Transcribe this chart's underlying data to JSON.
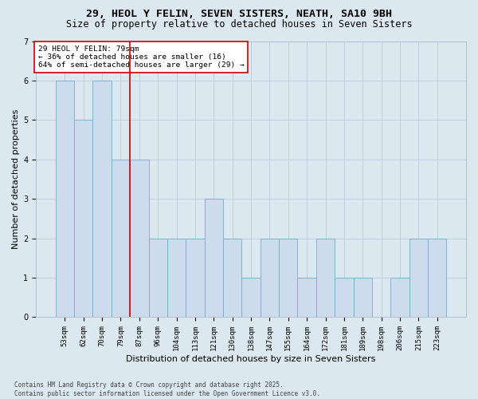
{
  "title1": "29, HEOL Y FELIN, SEVEN SISTERS, NEATH, SA10 9BH",
  "title2": "Size of property relative to detached houses in Seven Sisters",
  "xlabel": "Distribution of detached houses by size in Seven Sisters",
  "ylabel": "Number of detached properties",
  "categories": [
    "53sqm",
    "62sqm",
    "70sqm",
    "79sqm",
    "87sqm",
    "96sqm",
    "104sqm",
    "113sqm",
    "121sqm",
    "130sqm",
    "138sqm",
    "147sqm",
    "155sqm",
    "164sqm",
    "172sqm",
    "181sqm",
    "189sqm",
    "198sqm",
    "206sqm",
    "215sqm",
    "223sqm"
  ],
  "values": [
    6,
    5,
    6,
    4,
    4,
    2,
    2,
    2,
    3,
    2,
    1,
    2,
    2,
    1,
    2,
    1,
    1,
    0,
    1,
    2,
    2
  ],
  "bar_color": "#ccdcec",
  "bar_edgecolor": "#7aaac8",
  "redline_index": 3,
  "annotation_text": "29 HEOL Y FELIN: 79sqm\n← 36% of detached houses are smaller (16)\n64% of semi-detached houses are larger (29) →",
  "annotation_box_color": "#ffffff",
  "annotation_box_edgecolor": "#cc0000",
  "redline_color": "#cc0000",
  "ylim": [
    0,
    7
  ],
  "yticks": [
    0,
    1,
    2,
    3,
    4,
    5,
    6,
    7
  ],
  "grid_color": "#bbccdd",
  "fig_bg_color": "#dce8f0",
  "ax_bg_color": "#dce8f0",
  "footer": "Contains HM Land Registry data © Crown copyright and database right 2025.\nContains public sector information licensed under the Open Government Licence v3.0.",
  "title_fontsize": 9.5,
  "subtitle_fontsize": 8.5,
  "tick_fontsize": 6.5,
  "label_fontsize": 8,
  "annot_fontsize": 6.8,
  "footer_fontsize": 5.5
}
